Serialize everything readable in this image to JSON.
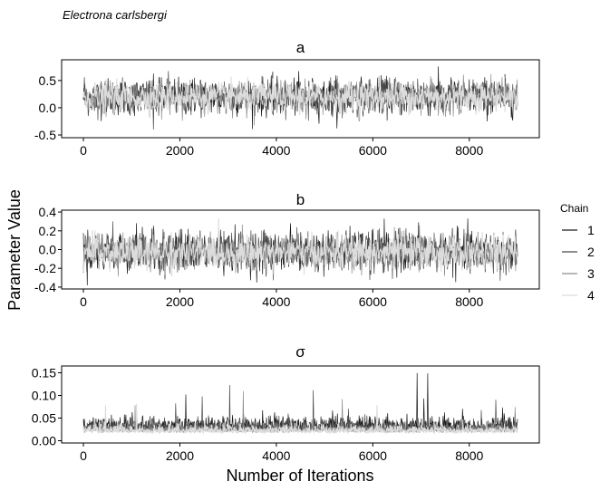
{
  "figure": {
    "title": "Electrona carlsbergi",
    "xlabel": "Number of Iterations",
    "ylabel": "Parameter Value"
  },
  "legend": {
    "title": "Chain",
    "placement": "right",
    "entries": [
      {
        "label": "1",
        "color": "#1a1a1a"
      },
      {
        "label": "2",
        "color": "#4a4a4a"
      },
      {
        "label": "3",
        "color": "#8c8c8c"
      },
      {
        "label": "4",
        "color": "#dcdcdc"
      }
    ]
  },
  "chart_data": [
    {
      "type": "line",
      "title": "a",
      "xlim": [
        0,
        9000
      ],
      "ylim": [
        -0.55,
        0.88
      ],
      "xticks": [
        0,
        2000,
        4000,
        6000,
        8000
      ],
      "yticks": [
        -0.5,
        0.0,
        0.5
      ],
      "ytick_labels": [
        "-0.5",
        "0.0",
        "0.5"
      ],
      "series": [
        {
          "name": "1",
          "mean": 0.2,
          "sd": 0.17,
          "min": -0.5,
          "max": 0.85
        },
        {
          "name": "2",
          "mean": 0.2,
          "sd": 0.15,
          "min": -0.4,
          "max": 0.8
        },
        {
          "name": "3",
          "mean": 0.2,
          "sd": 0.14,
          "min": -0.45,
          "max": 0.75
        },
        {
          "name": "4",
          "mean": 0.2,
          "sd": 0.13,
          "min": -0.4,
          "max": 0.7
        }
      ],
      "grid": false
    },
    {
      "type": "line",
      "title": "b",
      "xlim": [
        0,
        9000
      ],
      "ylim": [
        -0.42,
        0.42
      ],
      "xticks": [
        0,
        2000,
        4000,
        6000,
        8000
      ],
      "yticks": [
        -0.4,
        -0.2,
        0.0,
        0.2,
        0.4
      ],
      "ytick_labels": [
        "-0.4",
        "-0.2",
        "0.0",
        "0.2",
        "0.4"
      ],
      "series": [
        {
          "name": "1",
          "mean": -0.02,
          "sd": 0.11,
          "min": -0.38,
          "max": 0.33
        },
        {
          "name": "2",
          "mean": -0.02,
          "sd": 0.1,
          "min": -0.35,
          "max": 0.3
        },
        {
          "name": "3",
          "mean": -0.03,
          "sd": 0.09,
          "min": -0.3,
          "max": 0.28
        },
        {
          "name": "4",
          "mean": -0.03,
          "sd": 0.085,
          "min": -0.3,
          "max": 0.38
        }
      ],
      "grid": false
    },
    {
      "type": "line",
      "title": "σ",
      "xlim": [
        0,
        9000
      ],
      "ylim": [
        -0.005,
        0.165
      ],
      "xticks": [
        0,
        2000,
        4000,
        6000,
        8000
      ],
      "yticks": [
        0.0,
        0.05,
        0.1,
        0.15
      ],
      "ytick_labels": [
        "0.00",
        "0.05",
        "0.10",
        "0.15"
      ],
      "series": [
        {
          "name": "1",
          "mean": 0.022,
          "sd": 0.014,
          "min": 0.0,
          "max": 0.158
        },
        {
          "name": "2",
          "mean": 0.02,
          "sd": 0.012,
          "min": 0.0,
          "max": 0.145
        },
        {
          "name": "3",
          "mean": 0.018,
          "sd": 0.011,
          "min": 0.0,
          "max": 0.11
        },
        {
          "name": "4",
          "mean": 0.017,
          "sd": 0.01,
          "min": 0.0,
          "max": 0.1
        }
      ],
      "grid": false
    }
  ]
}
